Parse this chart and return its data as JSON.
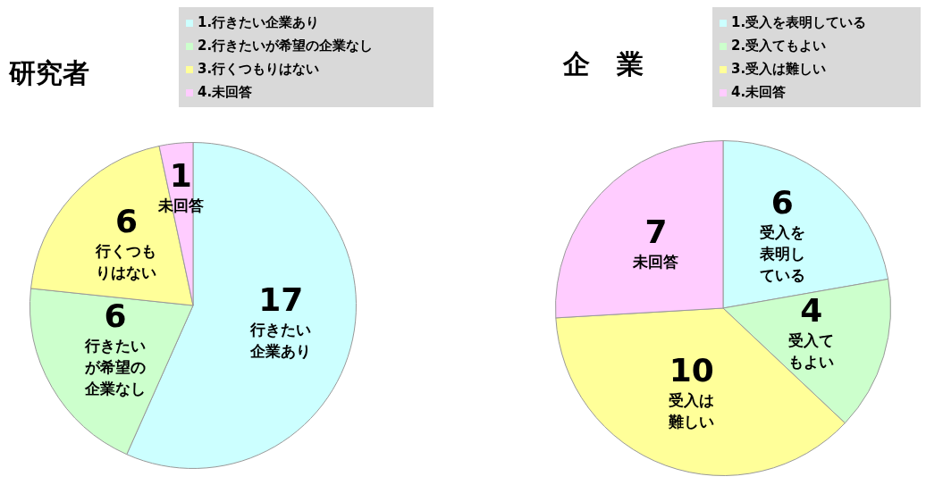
{
  "chart_data": [
    {
      "type": "pie",
      "title": "研究者",
      "categories": [
        "1.行きたい企業あり",
        "2.行きたいが希望の企業なし",
        "3.行くつもりはない",
        "4.未回答"
      ],
      "values": [
        17,
        6,
        6,
        1
      ],
      "colors": [
        "#ccffff",
        "#ccffcc",
        "#ffff99",
        "#ffccff"
      ],
      "data_labels": true,
      "legend": "top",
      "annotations": [
        "行きたい企業あり",
        "行きたいが希望の企業なし",
        "行くつもりはない",
        "未回答"
      ]
    },
    {
      "type": "pie",
      "title": "企　業",
      "categories": [
        "1.受入を表明している",
        "2.受入てもよい",
        "3.受入は難しい",
        "4.未回答"
      ],
      "values": [
        6,
        4,
        10,
        7
      ],
      "colors": [
        "#ccffff",
        "#ccffcc",
        "#ffff99",
        "#ffccff"
      ],
      "data_labels": true,
      "legend": "top",
      "annotations": [
        "受入を表明している",
        "受入てもよい",
        "受入は難しい",
        "未回答"
      ]
    }
  ]
}
